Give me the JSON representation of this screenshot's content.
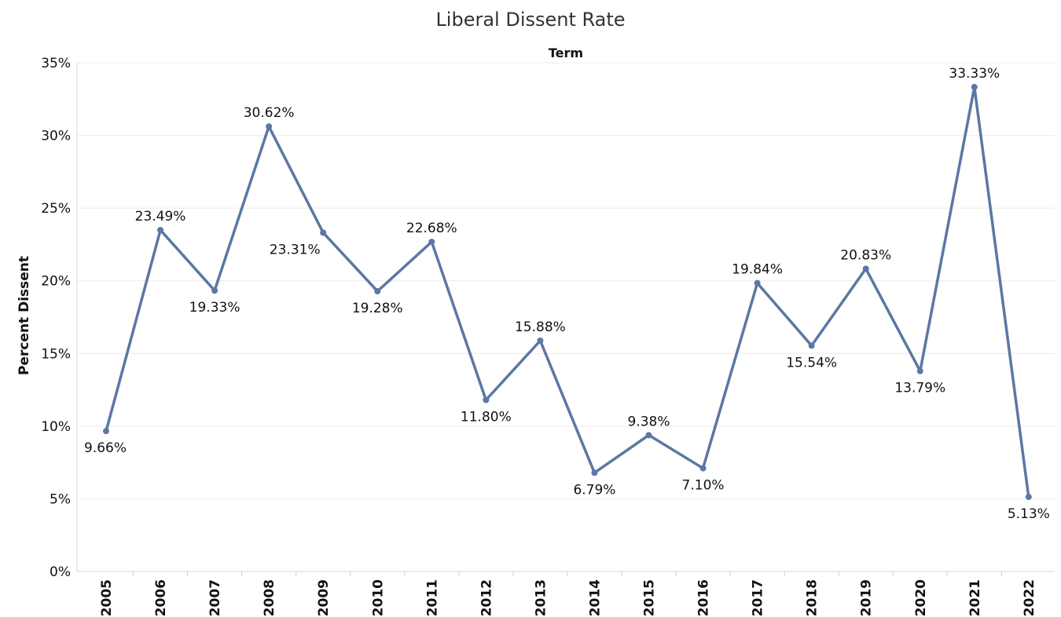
{
  "chart_data": {
    "type": "line",
    "title": "Liberal Dissent Rate",
    "column_header": "Term",
    "xlabel": "",
    "ylabel": "Percent Dissent",
    "ylim": [
      0,
      35
    ],
    "yticks": [
      "0%",
      "5%",
      "10%",
      "15%",
      "20%",
      "25%",
      "30%",
      "35%"
    ],
    "grid": true,
    "line_color": "#5b77a4",
    "series": [
      {
        "name": "Percent Dissent",
        "points": [
          {
            "year": "2005",
            "value": 9.66,
            "label": "9.66%",
            "pos": "below"
          },
          {
            "year": "2006",
            "value": 23.49,
            "label": "23.49%",
            "pos": "above"
          },
          {
            "year": "2007",
            "value": 19.33,
            "label": "19.33%",
            "pos": "below"
          },
          {
            "year": "2008",
            "value": 30.62,
            "label": "30.62%",
            "pos": "above"
          },
          {
            "year": "2009",
            "value": 23.31,
            "label": "23.31%",
            "pos": "below-left"
          },
          {
            "year": "2010",
            "value": 19.28,
            "label": "19.28%",
            "pos": "below"
          },
          {
            "year": "2011",
            "value": 22.68,
            "label": "22.68%",
            "pos": "above"
          },
          {
            "year": "2012",
            "value": 11.8,
            "label": "11.80%",
            "pos": "below"
          },
          {
            "year": "2013",
            "value": 15.88,
            "label": "15.88%",
            "pos": "above"
          },
          {
            "year": "2014",
            "value": 6.79,
            "label": "6.79%",
            "pos": "below"
          },
          {
            "year": "2015",
            "value": 9.38,
            "label": "9.38%",
            "pos": "above"
          },
          {
            "year": "2016",
            "value": 7.1,
            "label": "7.10%",
            "pos": "below"
          },
          {
            "year": "2017",
            "value": 19.84,
            "label": "19.84%",
            "pos": "above"
          },
          {
            "year": "2018",
            "value": 15.54,
            "label": "15.54%",
            "pos": "below"
          },
          {
            "year": "2019",
            "value": 20.83,
            "label": "20.83%",
            "pos": "above"
          },
          {
            "year": "2020",
            "value": 13.79,
            "label": "13.79%",
            "pos": "below"
          },
          {
            "year": "2021",
            "value": 33.33,
            "label": "33.33%",
            "pos": "above"
          },
          {
            "year": "2022",
            "value": 5.13,
            "label": "5.13%",
            "pos": "below"
          }
        ]
      }
    ]
  }
}
